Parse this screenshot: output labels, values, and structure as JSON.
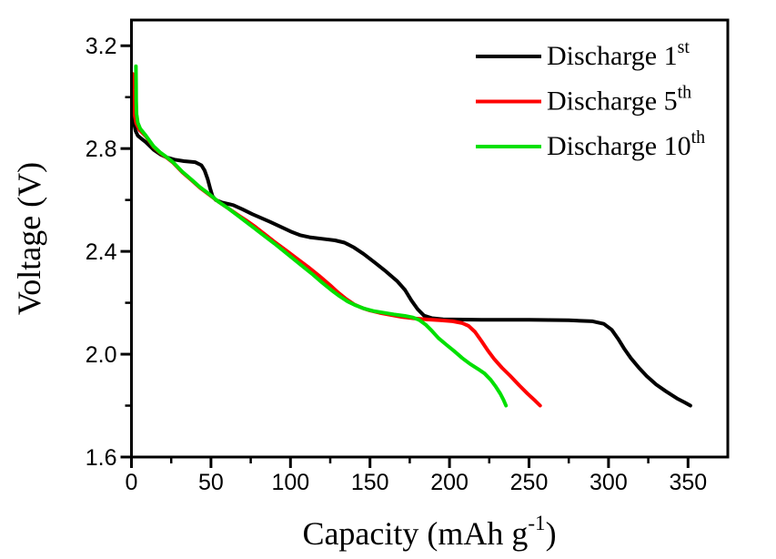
{
  "chart_data": {
    "type": "line",
    "title": "",
    "xlabel_main": "Capacity (mAh g",
    "xlabel_sup": "-1",
    "xlabel_close": ")",
    "ylabel": "Voltage (V)",
    "xlim": [
      0,
      375
    ],
    "ylim": [
      1.6,
      3.3
    ],
    "x_major_ticks": [
      0,
      50,
      100,
      150,
      200,
      250,
      300,
      350
    ],
    "x_minor_ticks": [
      25,
      75,
      125,
      175,
      225,
      275,
      325
    ],
    "y_major_ticks": [
      1.6,
      2.0,
      2.4,
      2.8,
      3.2
    ],
    "y_minor_ticks": [
      1.8,
      2.2,
      2.6,
      3.0
    ],
    "grid": false,
    "background": "#ffffff",
    "axis_color": "#000000",
    "legend_position": "top-right-inside",
    "series": [
      {
        "name_main": "Discharge 1",
        "name_sup": "st",
        "color": "#000000",
        "points": [
          [
            0.5,
            2.97
          ],
          [
            0.8,
            2.955
          ],
          [
            1.2,
            2.93
          ],
          [
            1.8,
            2.895
          ],
          [
            2.5,
            2.87
          ],
          [
            4,
            2.85
          ],
          [
            6,
            2.84
          ],
          [
            9,
            2.825
          ],
          [
            14,
            2.795
          ],
          [
            18,
            2.778
          ],
          [
            22,
            2.766
          ],
          [
            27,
            2.757
          ],
          [
            33,
            2.751
          ],
          [
            40,
            2.747
          ],
          [
            44,
            2.735
          ],
          [
            46,
            2.715
          ],
          [
            48,
            2.68
          ],
          [
            49.5,
            2.645
          ],
          [
            51,
            2.615
          ],
          [
            53,
            2.6
          ],
          [
            57,
            2.59
          ],
          [
            64,
            2.58
          ],
          [
            70,
            2.563
          ],
          [
            76,
            2.545
          ],
          [
            87,
            2.515
          ],
          [
            95,
            2.492
          ],
          [
            101,
            2.475
          ],
          [
            106,
            2.463
          ],
          [
            112,
            2.455
          ],
          [
            120,
            2.449
          ],
          [
            128,
            2.443
          ],
          [
            134,
            2.434
          ],
          [
            140,
            2.415
          ],
          [
            146,
            2.39
          ],
          [
            153,
            2.357
          ],
          [
            160,
            2.322
          ],
          [
            167,
            2.285
          ],
          [
            172,
            2.25
          ],
          [
            176,
            2.21
          ],
          [
            180,
            2.175
          ],
          [
            184,
            2.15
          ],
          [
            189,
            2.14
          ],
          [
            196,
            2.136
          ],
          [
            220,
            2.134
          ],
          [
            250,
            2.134
          ],
          [
            275,
            2.132
          ],
          [
            290,
            2.128
          ],
          [
            297,
            2.118
          ],
          [
            302,
            2.095
          ],
          [
            306,
            2.06
          ],
          [
            310,
            2.02
          ],
          [
            314,
            1.985
          ],
          [
            319,
            1.948
          ],
          [
            324,
            1.915
          ],
          [
            330,
            1.882
          ],
          [
            336,
            1.856
          ],
          [
            343,
            1.828
          ],
          [
            348,
            1.812
          ],
          [
            351.5,
            1.8
          ]
        ]
      },
      {
        "name_main": "Discharge 5",
        "name_sup": "th",
        "color": "#ff0000",
        "points": [
          [
            0.8,
            3.09
          ],
          [
            1,
            3.03
          ],
          [
            1.4,
            2.97
          ],
          [
            2,
            2.93
          ],
          [
            3,
            2.898
          ],
          [
            5,
            2.873
          ],
          [
            9,
            2.848
          ],
          [
            14,
            2.806
          ],
          [
            18,
            2.783
          ],
          [
            21,
            2.77
          ],
          [
            26,
            2.746
          ],
          [
            32,
            2.708
          ],
          [
            38,
            2.676
          ],
          [
            43,
            2.648
          ],
          [
            49,
            2.62
          ],
          [
            55,
            2.592
          ],
          [
            61,
            2.567
          ],
          [
            68,
            2.537
          ],
          [
            73,
            2.517
          ],
          [
            78,
            2.495
          ],
          [
            84,
            2.466
          ],
          [
            90,
            2.437
          ],
          [
            97,
            2.405
          ],
          [
            104,
            2.372
          ],
          [
            111,
            2.34
          ],
          [
            118,
            2.305
          ],
          [
            125,
            2.268
          ],
          [
            130,
            2.24
          ],
          [
            135,
            2.215
          ],
          [
            140,
            2.194
          ],
          [
            145,
            2.18
          ],
          [
            150,
            2.17
          ],
          [
            156,
            2.161
          ],
          [
            163,
            2.153
          ],
          [
            170,
            2.145
          ],
          [
            178,
            2.139
          ],
          [
            186,
            2.135
          ],
          [
            194,
            2.132
          ],
          [
            202,
            2.128
          ],
          [
            208,
            2.121
          ],
          [
            212,
            2.11
          ],
          [
            216,
            2.087
          ],
          [
            220,
            2.052
          ],
          [
            224,
            2.015
          ],
          [
            228,
            1.982
          ],
          [
            233,
            1.947
          ],
          [
            238,
            1.917
          ],
          [
            244,
            1.878
          ],
          [
            249,
            1.847
          ],
          [
            254,
            1.818
          ],
          [
            257,
            1.8
          ]
        ]
      },
      {
        "name_main": "Discharge 10",
        "name_sup": "th",
        "color": "#00e000",
        "points": [
          [
            2.8,
            3.12
          ],
          [
            2.9,
            3.05
          ],
          [
            3,
            2.985
          ],
          [
            3.2,
            2.935
          ],
          [
            4,
            2.9
          ],
          [
            5.5,
            2.878
          ],
          [
            9,
            2.851
          ],
          [
            14,
            2.808
          ],
          [
            18,
            2.785
          ],
          [
            21,
            2.772
          ],
          [
            26,
            2.748
          ],
          [
            32,
            2.71
          ],
          [
            38,
            2.678
          ],
          [
            43,
            2.65
          ],
          [
            49,
            2.622
          ],
          [
            55,
            2.592
          ],
          [
            61,
            2.567
          ],
          [
            66,
            2.543
          ],
          [
            72,
            2.515
          ],
          [
            78,
            2.487
          ],
          [
            84,
            2.458
          ],
          [
            90,
            2.43
          ],
          [
            96,
            2.4
          ],
          [
            102,
            2.37
          ],
          [
            108,
            2.34
          ],
          [
            114,
            2.31
          ],
          [
            120,
            2.278
          ],
          [
            126,
            2.248
          ],
          [
            131,
            2.225
          ],
          [
            136,
            2.205
          ],
          [
            141,
            2.19
          ],
          [
            146,
            2.178
          ],
          [
            152,
            2.168
          ],
          [
            158,
            2.162
          ],
          [
            165,
            2.155
          ],
          [
            172,
            2.149
          ],
          [
            177,
            2.143
          ],
          [
            181,
            2.133
          ],
          [
            185,
            2.115
          ],
          [
            189,
            2.09
          ],
          [
            193,
            2.063
          ],
          [
            198,
            2.037
          ],
          [
            203,
            2.012
          ],
          [
            208,
            1.985
          ],
          [
            213,
            1.962
          ],
          [
            218,
            1.942
          ],
          [
            222,
            1.925
          ],
          [
            226,
            1.9
          ],
          [
            229,
            1.875
          ],
          [
            232,
            1.846
          ],
          [
            234,
            1.822
          ],
          [
            235.5,
            1.8
          ]
        ]
      }
    ]
  }
}
